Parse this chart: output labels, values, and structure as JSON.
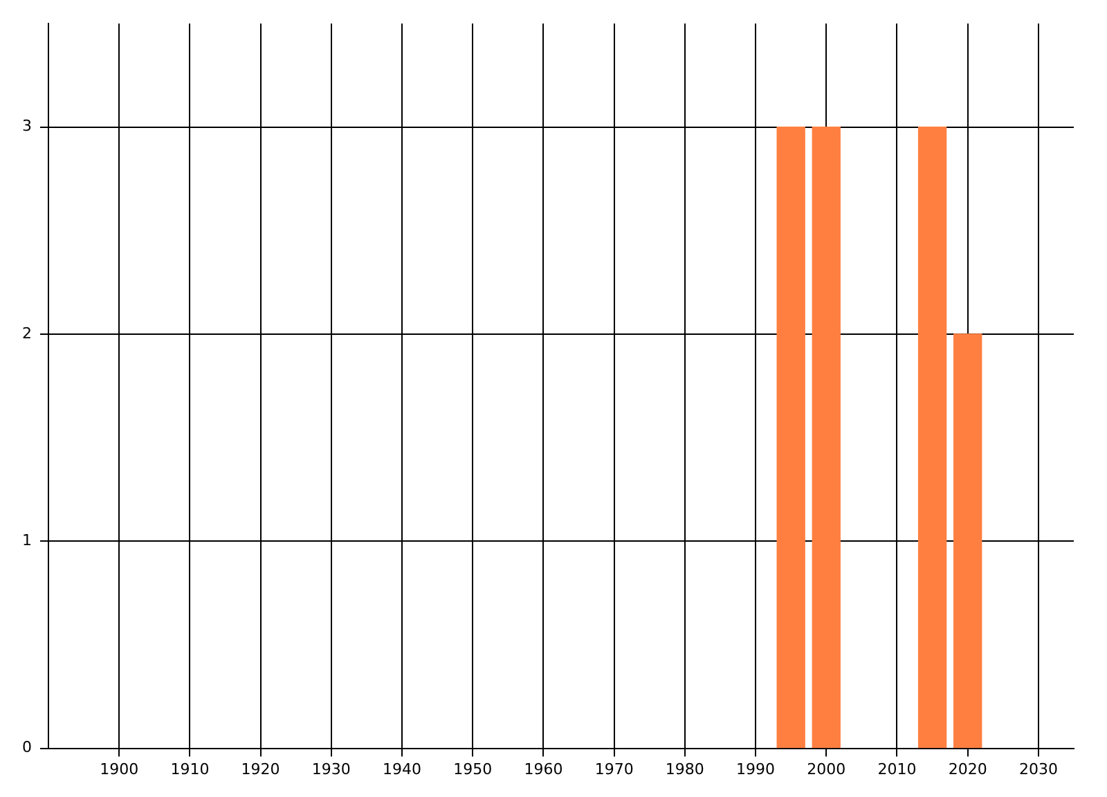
{
  "chart_data": {
    "type": "bar",
    "x": [
      1995,
      2000,
      2015,
      2020
    ],
    "values": [
      3,
      3,
      3,
      2
    ],
    "color": "#ff7f40",
    "xlim": [
      1890,
      2035
    ],
    "xticks": [
      1900,
      1910,
      1920,
      1930,
      1940,
      1950,
      1960,
      1970,
      1980,
      1990,
      2000,
      2010,
      2020,
      2030
    ],
    "ylim": [
      0,
      3.5
    ],
    "yticks": [
      0,
      1,
      2,
      3
    ],
    "grid": true,
    "legend": false
  }
}
